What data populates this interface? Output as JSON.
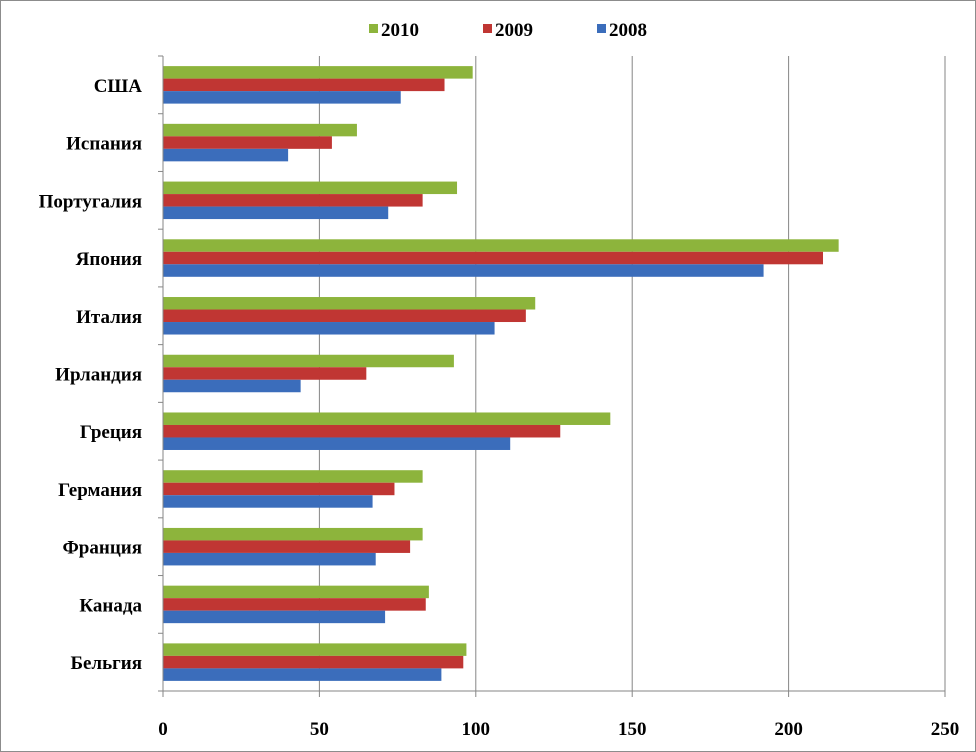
{
  "chart_data": {
    "type": "bar",
    "orientation": "horizontal",
    "categories": [
      "США",
      "Испания",
      "Португалия",
      "Япония",
      "Италия",
      "Ирландия",
      "Греция",
      "Германия",
      "Франция",
      "Канада",
      "Бельгия"
    ],
    "series": [
      {
        "name": "2010",
        "color": "#8db43c",
        "values": [
          99,
          62,
          94,
          216,
          119,
          93,
          143,
          83,
          83,
          85,
          97
        ]
      },
      {
        "name": "2009",
        "color": "#c03633",
        "values": [
          90,
          54,
          83,
          211,
          116,
          65,
          127,
          74,
          79,
          84,
          96
        ]
      },
      {
        "name": "2008",
        "color": "#3b6dbb",
        "values": [
          76,
          40,
          72,
          192,
          106,
          44,
          111,
          67,
          68,
          71,
          89
        ]
      }
    ],
    "x_ticks": [
      "0",
      "50",
      "100",
      "150",
      "200",
      "250"
    ],
    "xlim": [
      0,
      250
    ],
    "grid": true,
    "legend_position": "top"
  }
}
